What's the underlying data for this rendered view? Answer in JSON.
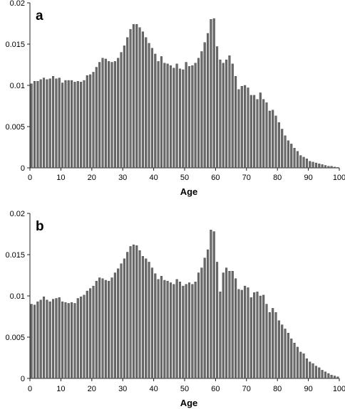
{
  "colors": {
    "bar_fill": "#6b6b6b",
    "bar_stroke": "#3a3a3a",
    "axis": "#222222"
  },
  "chart_data": [
    {
      "type": "bar",
      "panel_label": "a",
      "xlabel": "Age",
      "ylabel": "",
      "xlim": [
        0,
        100
      ],
      "ylim": [
        0,
        0.02
      ],
      "xticks": [
        "0",
        "10",
        "20",
        "30",
        "40",
        "50",
        "60",
        "70",
        "80",
        "90",
        "100"
      ],
      "yticks": [
        "0",
        "0.005",
        "0.01",
        "0.015",
        "0.02"
      ],
      "grid": false,
      "x_start": 0,
      "values": [
        0.0102,
        0.0105,
        0.0105,
        0.0107,
        0.0109,
        0.0107,
        0.0108,
        0.0111,
        0.0108,
        0.0109,
        0.0103,
        0.0106,
        0.0106,
        0.0106,
        0.0104,
        0.0105,
        0.0104,
        0.0106,
        0.0112,
        0.0113,
        0.0116,
        0.0122,
        0.0128,
        0.0133,
        0.0132,
        0.0129,
        0.0128,
        0.0129,
        0.0133,
        0.014,
        0.0148,
        0.0158,
        0.0168,
        0.0174,
        0.0174,
        0.017,
        0.0165,
        0.0158,
        0.0151,
        0.0145,
        0.0138,
        0.0129,
        0.0135,
        0.0127,
        0.0126,
        0.0124,
        0.0121,
        0.0126,
        0.012,
        0.0119,
        0.0128,
        0.0123,
        0.0124,
        0.0127,
        0.0133,
        0.0141,
        0.0152,
        0.0163,
        0.018,
        0.0181,
        0.0147,
        0.0131,
        0.0127,
        0.0131,
        0.0136,
        0.0126,
        0.0111,
        0.0095,
        0.0099,
        0.01,
        0.0097,
        0.0088,
        0.0088,
        0.0083,
        0.0091,
        0.0083,
        0.0079,
        0.0069,
        0.007,
        0.0063,
        0.0055,
        0.0047,
        0.0039,
        0.0033,
        0.0029,
        0.0024,
        0.002,
        0.0015,
        0.0013,
        0.0011,
        0.0008,
        0.0007,
        0.0006,
        0.0005,
        0.0004,
        0.0003,
        0.0002,
        0.0002,
        0.0001,
        5e-05
      ]
    },
    {
      "type": "bar",
      "panel_label": "b",
      "xlabel": "Age",
      "ylabel": "",
      "xlim": [
        0,
        100
      ],
      "ylim": [
        0,
        0.02
      ],
      "xticks": [
        "0",
        "10",
        "20",
        "30",
        "40",
        "50",
        "60",
        "70",
        "80",
        "90",
        "100"
      ],
      "yticks": [
        "0",
        "0.005",
        "0.01",
        "0.015",
        "0.02"
      ],
      "grid": false,
      "x_start": 0,
      "values": [
        0.009,
        0.0089,
        0.0093,
        0.0095,
        0.0099,
        0.0095,
        0.0093,
        0.0096,
        0.0097,
        0.0098,
        0.0093,
        0.0092,
        0.0091,
        0.0092,
        0.0091,
        0.0097,
        0.0099,
        0.0101,
        0.0106,
        0.0109,
        0.0112,
        0.0118,
        0.0122,
        0.0121,
        0.0119,
        0.0118,
        0.0122,
        0.0128,
        0.0133,
        0.0139,
        0.0145,
        0.0153,
        0.016,
        0.0162,
        0.0161,
        0.0155,
        0.0148,
        0.0145,
        0.0141,
        0.0134,
        0.0127,
        0.012,
        0.0124,
        0.0119,
        0.0118,
        0.0116,
        0.0114,
        0.012,
        0.0117,
        0.0112,
        0.0114,
        0.0116,
        0.0114,
        0.0117,
        0.0128,
        0.0134,
        0.0146,
        0.0156,
        0.018,
        0.0178,
        0.0141,
        0.0105,
        0.0128,
        0.0134,
        0.013,
        0.013,
        0.0121,
        0.0108,
        0.0107,
        0.0112,
        0.011,
        0.0098,
        0.0104,
        0.0105,
        0.01,
        0.0101,
        0.009,
        0.008,
        0.0085,
        0.008,
        0.007,
        0.0065,
        0.006,
        0.0055,
        0.0048,
        0.0043,
        0.0038,
        0.0032,
        0.003,
        0.0024,
        0.002,
        0.0018,
        0.0015,
        0.0013,
        0.001,
        0.0008,
        0.0006,
        0.0004,
        0.0003,
        0.0002
      ]
    }
  ]
}
